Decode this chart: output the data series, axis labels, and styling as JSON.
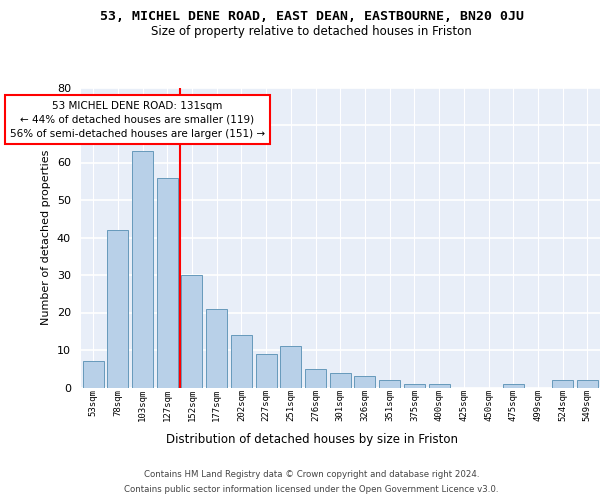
{
  "title": "53, MICHEL DENE ROAD, EAST DEAN, EASTBOURNE, BN20 0JU",
  "subtitle": "Size of property relative to detached houses in Friston",
  "xlabel": "Distribution of detached houses by size in Friston",
  "ylabel": "Number of detached properties",
  "bar_labels": [
    "53sqm",
    "78sqm",
    "103sqm",
    "127sqm",
    "152sqm",
    "177sqm",
    "202sqm",
    "227sqm",
    "251sqm",
    "276sqm",
    "301sqm",
    "326sqm",
    "351sqm",
    "375sqm",
    "400sqm",
    "425sqm",
    "450sqm",
    "475sqm",
    "499sqm",
    "524sqm",
    "549sqm"
  ],
  "values": [
    7,
    42,
    63,
    56,
    30,
    21,
    14,
    9,
    11,
    5,
    4,
    3,
    2,
    1,
    1,
    0,
    0,
    1,
    0,
    2,
    2
  ],
  "bar_color": "#b8d0e8",
  "bar_edge_color": "#6699bb",
  "vline_color": "red",
  "annotation_text": "53 MICHEL DENE ROAD: 131sqm\n← 44% of detached houses are smaller (119)\n56% of semi-detached houses are larger (151) →",
  "annotation_box_color": "white",
  "annotation_box_edge": "red",
  "background_color": "#e8eef8",
  "grid_color": "white",
  "footer_line1": "Contains HM Land Registry data © Crown copyright and database right 2024.",
  "footer_line2": "Contains public sector information licensed under the Open Government Licence v3.0.",
  "ylim": [
    0,
    80
  ],
  "yticks": [
    0,
    10,
    20,
    30,
    40,
    50,
    60,
    70,
    80
  ]
}
